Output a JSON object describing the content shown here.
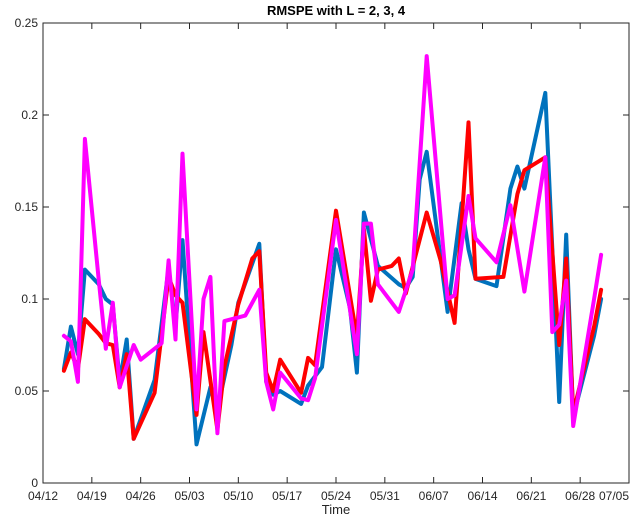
{
  "chart_data": {
    "type": "line",
    "title": "RMSPE with L = 2, 3, 4",
    "xlabel": "Time",
    "ylabel": "",
    "ylim": [
      0,
      0.25
    ],
    "yticks": [
      0,
      0.05,
      0.1,
      0.15,
      0.2,
      0.25
    ],
    "ytick_labels": [
      "0",
      "0.05",
      "0.1",
      "0.15",
      "0.2",
      "0.25"
    ],
    "xlim": [
      "2020-04-12",
      "2020-07-05"
    ],
    "xticks": [
      "2020-04-12",
      "2020-04-19",
      "2020-04-26",
      "2020-05-03",
      "2020-05-10",
      "2020-05-17",
      "2020-05-24",
      "2020-05-31",
      "2020-06-07",
      "2020-06-14",
      "2020-06-21",
      "2020-06-28",
      "2020-07-05"
    ],
    "xtick_labels": [
      "04/12",
      "04/19",
      "04/26",
      "05/03",
      "05/10",
      "05/17",
      "05/24",
      "05/31",
      "06/07",
      "06/14",
      "06/21",
      "06/28",
      "07/05"
    ],
    "grid": false,
    "legend": "none",
    "series": [
      {
        "color": "#0072BD",
        "points": [
          [
            "2020-04-15",
            0.062
          ],
          [
            "2020-04-16",
            0.085
          ],
          [
            "2020-04-17",
            0.07
          ],
          [
            "2020-04-18",
            0.116
          ],
          [
            "2020-04-20",
            0.108
          ],
          [
            "2020-04-21",
            0.1
          ],
          [
            "2020-04-22",
            0.097
          ],
          [
            "2020-04-23",
            0.055
          ],
          [
            "2020-04-24",
            0.078
          ],
          [
            "2020-04-25",
            0.024
          ],
          [
            "2020-04-28",
            0.056
          ],
          [
            "2020-04-30",
            0.117
          ],
          [
            "2020-05-01",
            0.085
          ],
          [
            "2020-05-02",
            0.132
          ],
          [
            "2020-05-04",
            0.021
          ],
          [
            "2020-05-06",
            0.052
          ],
          [
            "2020-05-07",
            0.04
          ],
          [
            "2020-05-09",
            0.075
          ],
          [
            "2020-05-10",
            0.098
          ],
          [
            "2020-05-13",
            0.13
          ],
          [
            "2020-05-14",
            0.055
          ],
          [
            "2020-05-15",
            0.048
          ],
          [
            "2020-05-16",
            0.05
          ],
          [
            "2020-05-19",
            0.043
          ],
          [
            "2020-05-20",
            0.053
          ],
          [
            "2020-05-22",
            0.063
          ],
          [
            "2020-05-24",
            0.127
          ],
          [
            "2020-05-26",
            0.095
          ],
          [
            "2020-05-27",
            0.06
          ],
          [
            "2020-05-28",
            0.147
          ],
          [
            "2020-05-30",
            0.118
          ],
          [
            "2020-06-02",
            0.108
          ],
          [
            "2020-06-03",
            0.106
          ],
          [
            "2020-06-04",
            0.112
          ],
          [
            "2020-06-05",
            0.165
          ],
          [
            "2020-06-06",
            0.18
          ],
          [
            "2020-06-09",
            0.093
          ],
          [
            "2020-06-11",
            0.152
          ],
          [
            "2020-06-12",
            0.127
          ],
          [
            "2020-06-13",
            0.111
          ],
          [
            "2020-06-16",
            0.107
          ],
          [
            "2020-06-18",
            0.16
          ],
          [
            "2020-06-19",
            0.172
          ],
          [
            "2020-06-20",
            0.16
          ],
          [
            "2020-06-23",
            0.212
          ],
          [
            "2020-06-25",
            0.044
          ],
          [
            "2020-06-26",
            0.135
          ],
          [
            "2020-06-27",
            0.036
          ],
          [
            "2020-06-30",
            0.08
          ],
          [
            "2020-07-01",
            0.1
          ]
        ]
      },
      {
        "color": "#FF0000",
        "points": [
          [
            "2020-04-15",
            0.061
          ],
          [
            "2020-04-16",
            0.071
          ],
          [
            "2020-04-17",
            0.062
          ],
          [
            "2020-04-18",
            0.089
          ],
          [
            "2020-04-20",
            0.081
          ],
          [
            "2020-04-21",
            0.076
          ],
          [
            "2020-04-22",
            0.075
          ],
          [
            "2020-04-23",
            0.052
          ],
          [
            "2020-04-24",
            0.07
          ],
          [
            "2020-04-25",
            0.024
          ],
          [
            "2020-04-28",
            0.049
          ],
          [
            "2020-04-30",
            0.112
          ],
          [
            "2020-05-01",
            0.102
          ],
          [
            "2020-05-02",
            0.098
          ],
          [
            "2020-05-04",
            0.037
          ],
          [
            "2020-05-05",
            0.082
          ],
          [
            "2020-05-07",
            0.029
          ],
          [
            "2020-05-08",
            0.063
          ],
          [
            "2020-05-10",
            0.097
          ],
          [
            "2020-05-12",
            0.122
          ],
          [
            "2020-05-13",
            0.126
          ],
          [
            "2020-05-14",
            0.06
          ],
          [
            "2020-05-15",
            0.05
          ],
          [
            "2020-05-16",
            0.067
          ],
          [
            "2020-05-19",
            0.049
          ],
          [
            "2020-05-20",
            0.068
          ],
          [
            "2020-05-21",
            0.064
          ],
          [
            "2020-05-24",
            0.148
          ],
          [
            "2020-05-27",
            0.079
          ],
          [
            "2020-05-28",
            0.138
          ],
          [
            "2020-05-29",
            0.099
          ],
          [
            "2020-05-30",
            0.116
          ],
          [
            "2020-06-01",
            0.118
          ],
          [
            "2020-06-02",
            0.122
          ],
          [
            "2020-06-03",
            0.103
          ],
          [
            "2020-06-06",
            0.147
          ],
          [
            "2020-06-08",
            0.121
          ],
          [
            "2020-06-10",
            0.087
          ],
          [
            "2020-06-12",
            0.196
          ],
          [
            "2020-06-13",
            0.111
          ],
          [
            "2020-06-17",
            0.112
          ],
          [
            "2020-06-19",
            0.157
          ],
          [
            "2020-06-20",
            0.17
          ],
          [
            "2020-06-23",
            0.177
          ],
          [
            "2020-06-25",
            0.075
          ],
          [
            "2020-06-26",
            0.122
          ],
          [
            "2020-06-27",
            0.038
          ],
          [
            "2020-06-30",
            0.085
          ],
          [
            "2020-07-01",
            0.105
          ]
        ]
      },
      {
        "color": "#FF00FF",
        "points": [
          [
            "2020-04-15",
            0.08
          ],
          [
            "2020-04-16",
            0.077
          ],
          [
            "2020-04-17",
            0.055
          ],
          [
            "2020-04-18",
            0.187
          ],
          [
            "2020-04-20",
            0.11
          ],
          [
            "2020-04-21",
            0.073
          ],
          [
            "2020-04-22",
            0.098
          ],
          [
            "2020-04-23",
            0.052
          ],
          [
            "2020-04-25",
            0.075
          ],
          [
            "2020-04-26",
            0.067
          ],
          [
            "2020-04-29",
            0.076
          ],
          [
            "2020-04-30",
            0.121
          ],
          [
            "2020-05-01",
            0.078
          ],
          [
            "2020-05-02",
            0.179
          ],
          [
            "2020-05-04",
            0.04
          ],
          [
            "2020-05-05",
            0.1
          ],
          [
            "2020-05-06",
            0.112
          ],
          [
            "2020-05-07",
            0.027
          ],
          [
            "2020-05-08",
            0.088
          ],
          [
            "2020-05-10",
            0.09
          ],
          [
            "2020-05-11",
            0.091
          ],
          [
            "2020-05-13",
            0.105
          ],
          [
            "2020-05-14",
            0.055
          ],
          [
            "2020-05-15",
            0.04
          ],
          [
            "2020-05-16",
            0.06
          ],
          [
            "2020-05-19",
            0.046
          ],
          [
            "2020-05-20",
            0.045
          ],
          [
            "2020-05-21",
            0.057
          ],
          [
            "2020-05-24",
            0.143
          ],
          [
            "2020-05-27",
            0.07
          ],
          [
            "2020-05-28",
            0.141
          ],
          [
            "2020-05-29",
            0.141
          ],
          [
            "2020-05-30",
            0.108
          ],
          [
            "2020-06-02",
            0.093
          ],
          [
            "2020-06-04",
            0.116
          ],
          [
            "2020-06-06",
            0.232
          ],
          [
            "2020-06-09",
            0.1
          ],
          [
            "2020-06-10",
            0.102
          ],
          [
            "2020-06-12",
            0.156
          ],
          [
            "2020-06-13",
            0.133
          ],
          [
            "2020-06-16",
            0.12
          ],
          [
            "2020-06-18",
            0.151
          ],
          [
            "2020-06-20",
            0.104
          ],
          [
            "2020-06-23",
            0.177
          ],
          [
            "2020-06-24",
            0.082
          ],
          [
            "2020-06-25",
            0.086
          ],
          [
            "2020-06-26",
            0.11
          ],
          [
            "2020-06-27",
            0.031
          ],
          [
            "2020-06-30",
            0.1
          ],
          [
            "2020-07-01",
            0.124
          ]
        ]
      }
    ]
  }
}
